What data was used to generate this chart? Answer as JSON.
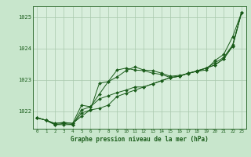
{
  "xlabel": "Graphe pression niveau de la mer (hPa)",
  "x_ticks": [
    0,
    1,
    2,
    3,
    4,
    5,
    6,
    7,
    8,
    9,
    10,
    11,
    12,
    13,
    14,
    15,
    16,
    17,
    18,
    19,
    20,
    21,
    22,
    23
  ],
  "ylim": [
    1021.45,
    1025.35
  ],
  "yticks": [
    1022,
    1023,
    1024,
    1025
  ],
  "background_color": "#c8e6cc",
  "plot_bg_color": "#d8eedc",
  "grid_color": "#a8c8ac",
  "line_color": "#1a5c1a",
  "series": [
    [
      1021.8,
      1021.72,
      1021.62,
      1021.65,
      1021.62,
      1021.85,
      1022.05,
      1022.9,
      1022.95,
      1023.1,
      1023.3,
      1023.42,
      1023.32,
      1023.3,
      1023.22,
      1023.12,
      1023.15,
      1023.2,
      1023.3,
      1023.38,
      1023.55,
      1023.72,
      1024.12,
      1025.15
    ],
    [
      1021.8,
      1021.72,
      1021.62,
      1021.65,
      1021.62,
      1022.2,
      1022.15,
      1022.4,
      1022.5,
      1022.6,
      1022.68,
      1022.78,
      1022.78,
      1022.88,
      1022.98,
      1023.08,
      1023.12,
      1023.22,
      1023.28,
      1023.38,
      1023.48,
      1023.68,
      1024.08,
      1025.15
    ],
    [
      1021.8,
      1021.72,
      1021.58,
      1021.62,
      1021.58,
      1021.95,
      1022.05,
      1022.1,
      1022.2,
      1022.48,
      1022.58,
      1022.68,
      1022.78,
      1022.88,
      1022.98,
      1023.08,
      1023.12,
      1023.22,
      1023.28,
      1023.38,
      1023.48,
      1023.68,
      1024.08,
      1025.15
    ],
    [
      1021.8,
      1021.72,
      1021.58,
      1021.58,
      1021.58,
      1022.05,
      1022.15,
      1022.55,
      1022.95,
      1023.32,
      1023.38,
      1023.32,
      1023.3,
      1023.22,
      1023.18,
      1023.08,
      1023.12,
      1023.22,
      1023.28,
      1023.32,
      1023.62,
      1023.82,
      1024.38,
      1025.15
    ]
  ]
}
